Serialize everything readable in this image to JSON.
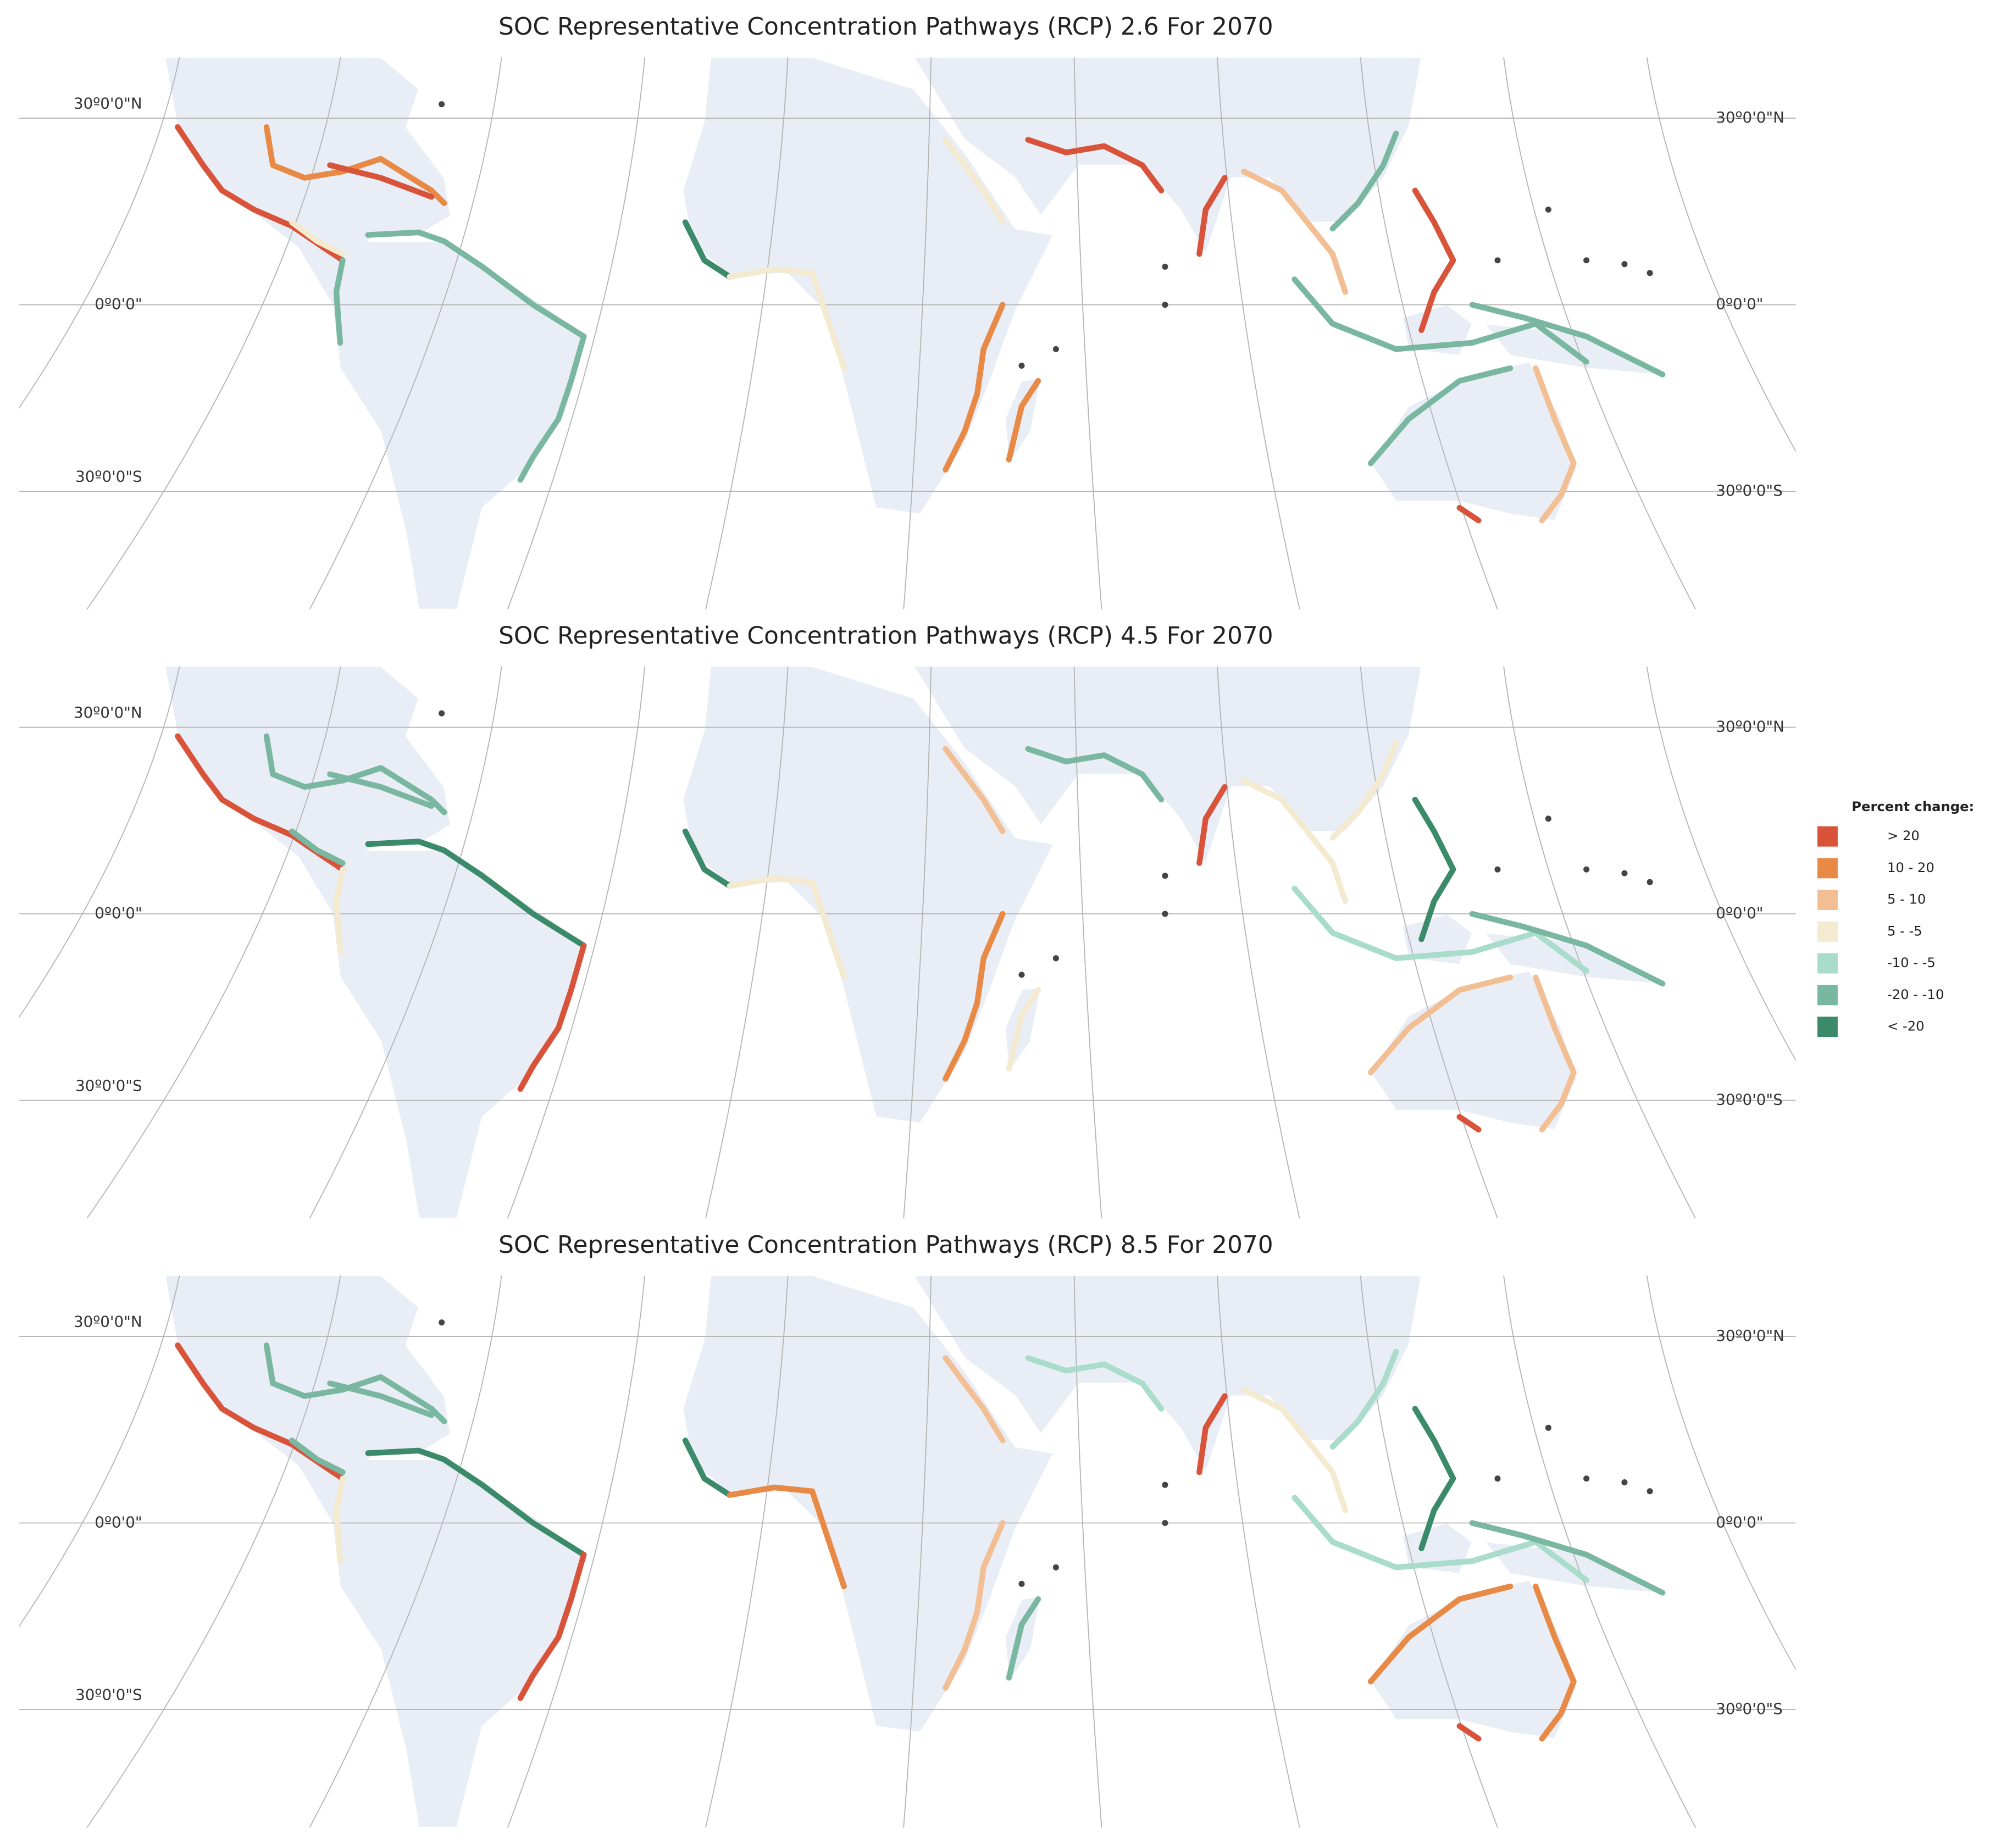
{
  "panels": [
    {
      "title": "SOC Representative Concentration Pathways (RCP) 2.6 For 2070"
    },
    {
      "title": "SOC Representative Concentration Pathways (RCP) 4.5 For 2070"
    },
    {
      "title": "SOC Representative Concentration Pathways (RCP) 8.5 For 2070"
    }
  ],
  "latitude_labels": [
    "30º0'0\"N",
    "0º0'0\"",
    "30º0'0\"S"
  ],
  "legend": {
    "title": "Percent change:",
    "items": [
      {
        "label": "> 20",
        "color": "#d9533a"
      },
      {
        "label": "10 - 20",
        "color": "#e88a45"
      },
      {
        "label": "5 - 10",
        "color": "#f2bf94"
      },
      {
        "label": "5 - -5",
        "color": "#f3ead0"
      },
      {
        "label": "-10 - -5",
        "color": "#a9dccb"
      },
      {
        "label": "-20  - -10",
        "color": "#79b7a0"
      },
      {
        "label": "< -20",
        "color": "#3b8a6a"
      }
    ]
  }
}
